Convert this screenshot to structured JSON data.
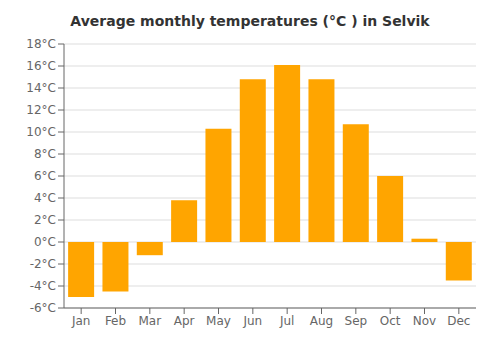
{
  "chart_data": {
    "type": "bar",
    "title": "Average monthly temperatures (°C ) in Selvik",
    "categories": [
      "Jan",
      "Feb",
      "Mar",
      "Apr",
      "May",
      "Jun",
      "Jul",
      "Aug",
      "Sep",
      "Oct",
      "Nov",
      "Dec"
    ],
    "values": [
      -5.0,
      -4.5,
      -1.2,
      3.8,
      10.3,
      14.8,
      16.1,
      14.8,
      10.7,
      6.0,
      0.3,
      -3.5
    ],
    "color": "#FFA500",
    "ylim": [
      -6,
      18
    ],
    "yticks": [
      {
        "value": -6,
        "label": "-6°C"
      },
      {
        "value": -4,
        "label": "-4°C"
      },
      {
        "value": -2,
        "label": "-2°C"
      },
      {
        "value": 0,
        "label": "0°C"
      },
      {
        "value": 2,
        "label": "2°C"
      },
      {
        "value": 4,
        "label": "4°C"
      },
      {
        "value": 6,
        "label": "6°C"
      },
      {
        "value": 8,
        "label": "8°C"
      },
      {
        "value": 10,
        "label": "10°C"
      },
      {
        "value": 12,
        "label": "12°C"
      },
      {
        "value": 14,
        "label": "14°C"
      },
      {
        "value": 16,
        "label": "16°C"
      },
      {
        "value": 18,
        "label": "18°C"
      }
    ],
    "grid": true
  }
}
